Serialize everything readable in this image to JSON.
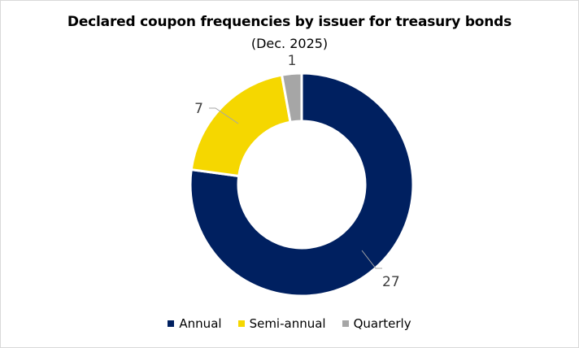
{
  "chart_data": {
    "type": "pie",
    "variant": "donut",
    "title": "Declared coupon frequencies by issuer for treasury bonds",
    "subtitle": "(Dec. 2025)",
    "categories": [
      "Annual",
      "Semi-annual",
      "Quarterly"
    ],
    "values": [
      27,
      7,
      1
    ],
    "colors": [
      "#002060",
      "#f5d700",
      "#a6a6a6"
    ],
    "data_labels": [
      "27",
      "7",
      "1"
    ],
    "legend_position": "bottom"
  },
  "legend": {
    "items": [
      {
        "label": "Annual",
        "color": "#002060"
      },
      {
        "label": "Semi-annual",
        "color": "#f5d700"
      },
      {
        "label": "Quarterly",
        "color": "#a6a6a6"
      }
    ]
  }
}
